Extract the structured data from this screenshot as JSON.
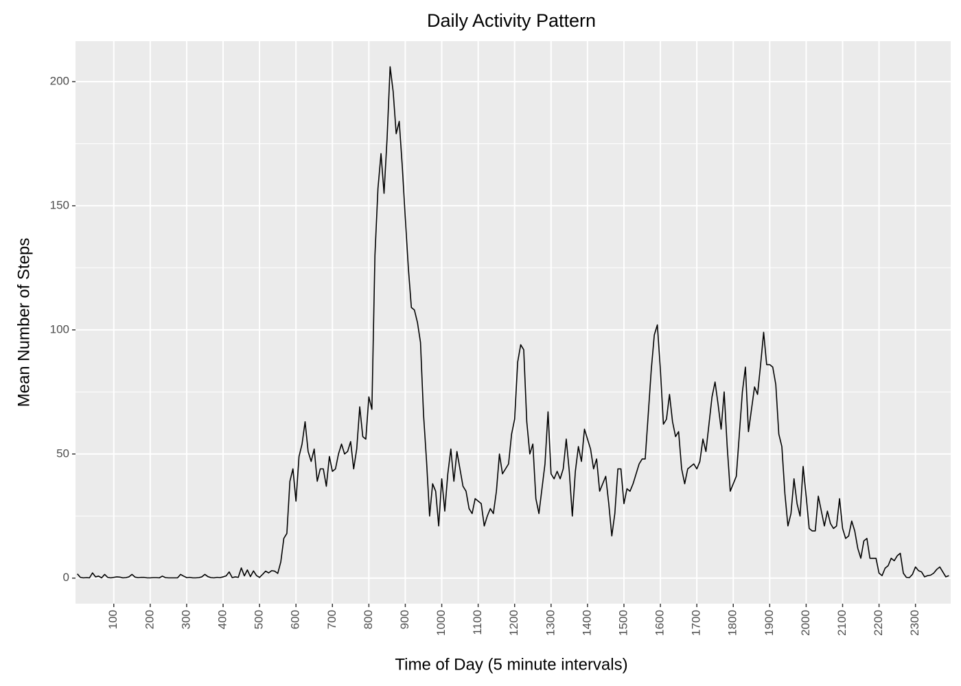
{
  "chart_data": {
    "type": "line",
    "title": "Daily Activity Pattern",
    "x_label": "Time of Day (5 minute intervals)",
    "y_label": "Mean Number of Steps",
    "categories": [
      null,
      null,
      null,
      null,
      null,
      null,
      null,
      null,
      null,
      null,
      null,
      null,
      "100",
      null,
      null,
      null,
      null,
      null,
      null,
      null,
      null,
      null,
      null,
      null,
      "200",
      null,
      null,
      null,
      null,
      null,
      null,
      null,
      null,
      null,
      null,
      null,
      "300",
      null,
      null,
      null,
      null,
      null,
      null,
      null,
      null,
      null,
      null,
      null,
      "400",
      null,
      null,
      null,
      null,
      null,
      null,
      null,
      null,
      null,
      null,
      null,
      "500",
      null,
      null,
      null,
      null,
      null,
      null,
      null,
      null,
      null,
      null,
      null,
      "600",
      null,
      null,
      null,
      null,
      null,
      null,
      null,
      null,
      null,
      null,
      null,
      "700",
      null,
      null,
      null,
      null,
      null,
      null,
      null,
      null,
      null,
      null,
      null,
      "800",
      null,
      null,
      null,
      null,
      null,
      null,
      null,
      null,
      null,
      null,
      null,
      "900",
      null,
      null,
      null,
      null,
      null,
      null,
      null,
      null,
      null,
      null,
      null,
      "1000",
      null,
      null,
      null,
      null,
      null,
      null,
      null,
      null,
      null,
      null,
      null,
      "1100",
      null,
      null,
      null,
      null,
      null,
      null,
      null,
      null,
      null,
      null,
      null,
      "1200",
      null,
      null,
      null,
      null,
      null,
      null,
      null,
      null,
      null,
      null,
      null,
      "1300",
      null,
      null,
      null,
      null,
      null,
      null,
      null,
      null,
      null,
      null,
      null,
      "1400",
      null,
      null,
      null,
      null,
      null,
      null,
      null,
      null,
      null,
      null,
      null,
      "1500",
      null,
      null,
      null,
      null,
      null,
      null,
      null,
      null,
      null,
      null,
      null,
      "1600",
      null,
      null,
      null,
      null,
      null,
      null,
      null,
      null,
      null,
      null,
      null,
      "1700",
      null,
      null,
      null,
      null,
      null,
      null,
      null,
      null,
      null,
      null,
      null,
      "1800",
      null,
      null,
      null,
      null,
      null,
      null,
      null,
      null,
      null,
      null,
      null,
      "1900",
      null,
      null,
      null,
      null,
      null,
      null,
      null,
      null,
      null,
      null,
      null,
      "2000",
      null,
      null,
      null,
      null,
      null,
      null,
      null,
      null,
      null,
      null,
      null,
      "2100",
      null,
      null,
      null,
      null,
      null,
      null,
      null,
      null,
      null,
      null,
      null,
      "2200",
      null,
      null,
      null,
      null,
      null,
      null,
      null,
      null,
      null,
      null,
      null,
      "2300",
      null,
      null,
      null,
      null,
      null,
      null,
      null,
      null,
      null,
      null,
      null
    ],
    "values": [
      1.7,
      0.3,
      0.1,
      0.2,
      0.1,
      2.1,
      0.5,
      0.8,
      0.1,
      1.5,
      0.3,
      0.1,
      0.3,
      0.5,
      0.4,
      0.1,
      0.2,
      0.5,
      1.5,
      0.4,
      0.2,
      0.3,
      0.3,
      0.1,
      0.1,
      0.2,
      0.2,
      0.1,
      0.8,
      0.2,
      0.1,
      0.1,
      0.1,
      0.1,
      1.5,
      0.8,
      0.2,
      0.3,
      0.1,
      0.1,
      0.2,
      0.5,
      1.5,
      0.6,
      0.2,
      0.1,
      0.3,
      0.2,
      0.5,
      0.9,
      2.5,
      0.2,
      0.5,
      0.3,
      4.1,
      0.9,
      3.3,
      0.6,
      2.9,
      1.0,
      0.3,
      1.5,
      2.8,
      2.1,
      3.0,
      2.8,
      1.9,
      6.5,
      16,
      18,
      39,
      44,
      31,
      49,
      54,
      63,
      51,
      47,
      52,
      39,
      44,
      44,
      37,
      49,
      43,
      44,
      50,
      54,
      50,
      51,
      55,
      44,
      52,
      69,
      57,
      56,
      73,
      68,
      130,
      157,
      171,
      155,
      177,
      206,
      196,
      179,
      184,
      166,
      145,
      125,
      109,
      108,
      103,
      95,
      66,
      47,
      25,
      38,
      35,
      21,
      40,
      27,
      42,
      52,
      39,
      51,
      44,
      37,
      35,
      28,
      26,
      32,
      31,
      30,
      21,
      25,
      28,
      26,
      35,
      50,
      42,
      44,
      46,
      58,
      64,
      87,
      94,
      92,
      63,
      50,
      54,
      32,
      26,
      36,
      46,
      67,
      42,
      40,
      43,
      40,
      44,
      56,
      43,
      25,
      43,
      53,
      47,
      60,
      56,
      52,
      44,
      48,
      35,
      38,
      41,
      30,
      17,
      26,
      44,
      44,
      30,
      36,
      35,
      38,
      42,
      46,
      48,
      48,
      66,
      84,
      98,
      102,
      84,
      62,
      64,
      74,
      63,
      57,
      59,
      44,
      38,
      44,
      45,
      46,
      44,
      47,
      56,
      51,
      62,
      73,
      79,
      70,
      60,
      75,
      53,
      35,
      38,
      41,
      58,
      75,
      85,
      59,
      68,
      77,
      74,
      86,
      99,
      86,
      86,
      85,
      78,
      58,
      53,
      34,
      21,
      26,
      40,
      30,
      25,
      45,
      33,
      20,
      19,
      19,
      33,
      27,
      21,
      27,
      22,
      20,
      21,
      32,
      20,
      16,
      17,
      23,
      19,
      12,
      8,
      15,
      16,
      8,
      8,
      8,
      2,
      1,
      4,
      5,
      8,
      7,
      9,
      10,
      2,
      0.3,
      0.2,
      1.5,
      4.5,
      3,
      2.5,
      0.5,
      1,
      1.2,
      2,
      3.5,
      4.5,
      2.5,
      0.5,
      1
    ],
    "color": "#000000",
    "ylim": [
      -10.3,
      216.3
    ],
    "yticks": [
      0,
      50,
      100,
      150,
      200
    ],
    "grid": true,
    "background": "#EBEBEB"
  }
}
